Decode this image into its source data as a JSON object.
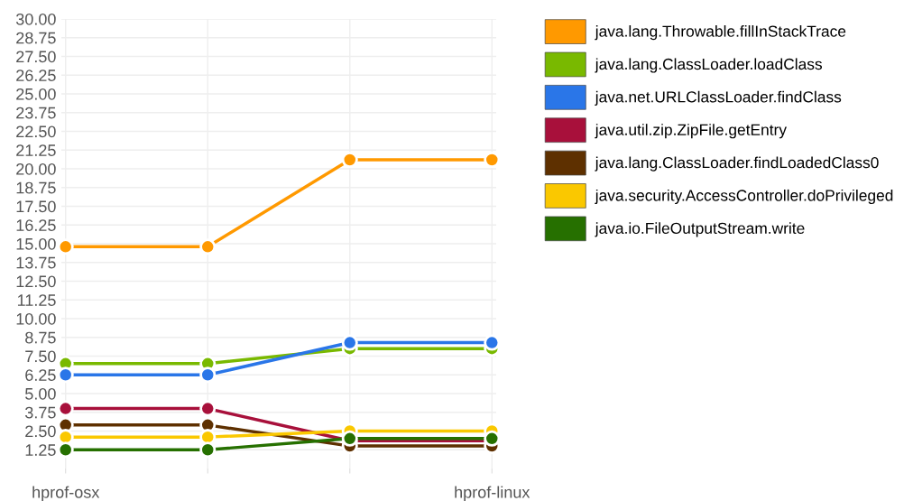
{
  "chart_data": {
    "type": "line",
    "categories": [
      "hprof-osx",
      null,
      null,
      "hprof-linux"
    ],
    "series": [
      {
        "name": "java.lang.Throwable.fillInStackTrace",
        "color": "#ff9900",
        "values": [
          14.8,
          14.8,
          20.6,
          20.6
        ]
      },
      {
        "name": "java.lang.ClassLoader.loadClass",
        "color": "#79b900",
        "values": [
          7.0,
          7.0,
          8.0,
          8.0
        ]
      },
      {
        "name": "java.net.URLClassLoader.findClass",
        "color": "#2a76e8",
        "values": [
          6.25,
          6.25,
          8.4,
          8.4
        ]
      },
      {
        "name": "java.util.zip.ZipFile.getEntry",
        "color": "#a8103b",
        "values": [
          4.0,
          4.0,
          1.85,
          1.85
        ]
      },
      {
        "name": "java.lang.ClassLoader.findLoadedClass0",
        "color": "#5e3000",
        "values": [
          2.9,
          2.9,
          1.5,
          1.5
        ]
      },
      {
        "name": "java.security.AccessController.doPrivileged",
        "color": "#fac800",
        "values": [
          2.1,
          2.1,
          2.5,
          2.5
        ]
      },
      {
        "name": "java.io.FileOutputStream.write",
        "color": "#267000",
        "values": [
          1.25,
          1.25,
          2.0,
          2.0
        ]
      }
    ],
    "ylim": [
      0,
      30
    ],
    "yticks": [
      1.25,
      {
        "value": 2.5,
        "label": "2.50"
      },
      3.75,
      {
        "value": 5,
        "label": "5.00"
      },
      6.25,
      {
        "value": 7.5,
        "label": "7.50"
      },
      8.75,
      {
        "value": 10,
        "label": "10.00"
      },
      11.25,
      {
        "value": 12.5,
        "label": "12.50"
      },
      13.75,
      {
        "value": 15,
        "label": "15.00"
      },
      16.25,
      {
        "value": 17.5,
        "label": "17.50"
      },
      18.75,
      {
        "value": 20,
        "label": "20.00"
      },
      21.25,
      {
        "value": 22.5,
        "label": "22.50"
      },
      23.75,
      {
        "value": 25,
        "label": "25.00"
      },
      26.25,
      {
        "value": 27.5,
        "label": "27.50"
      },
      28.75,
      {
        "value": 30,
        "label": "30.00"
      }
    ],
    "grid": true,
    "legend": "top right",
    "marker": "circle",
    "line_style": "solid"
  }
}
